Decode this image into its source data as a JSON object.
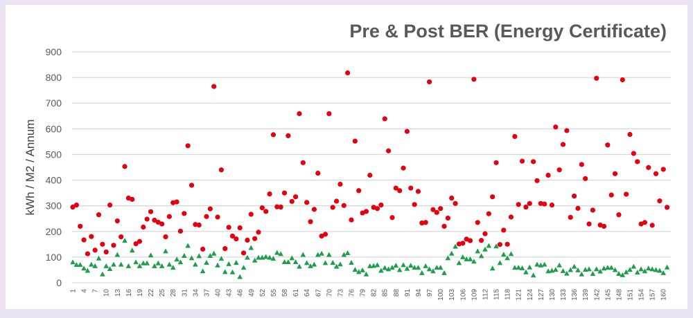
{
  "chart_data": {
    "type": "scatter",
    "title": "Pre & Post BER (Energy Certificate)",
    "xlabel": "",
    "ylabel": "kWh / M2 / Annum",
    "ylim": [
      0,
      900
    ],
    "yticks": [
      0,
      100,
      200,
      300,
      400,
      500,
      600,
      700,
      800,
      900
    ],
    "xlim": [
      1,
      161
    ],
    "xtick_step": 3,
    "grid": "horizontal",
    "legend": "none",
    "series": [
      {
        "marker": "circle",
        "color": "#e3000f",
        "values": [
          295,
          303,
          220,
          167,
          113,
          180,
          127,
          265,
          150,
          120,
          303,
          146,
          241,
          179,
          453,
          330,
          325,
          152,
          161,
          217,
          248,
          277,
          244,
          236,
          229,
          179,
          258,
          312,
          315,
          201,
          270,
          534,
          380,
          227,
          225,
          131,
          258,
          288,
          765,
          256,
          440,
          133,
          216,
          182,
          171,
          214,
          116,
          166,
          267,
          172,
          197,
          292,
          278,
          346,
          577,
          296,
          295,
          350,
          573,
          317,
          335,
          659,
          468,
          313,
          238,
          286,
          427,
          182,
          189,
          659,
          294,
          318,
          384,
          301,
          818,
          245,
          552,
          359,
          272,
          278,
          419,
          294,
          289,
          303,
          639,
          514,
          254,
          369,
          359,
          447,
          590,
          369,
          305,
          356,
          233,
          235,
          783,
          285,
          274,
          289,
          220,
          252,
          330,
          309,
          151,
          154,
          170,
          164,
          793,
          235,
          165,
          191,
          269,
          335,
          468,
          149,
          205,
          150,
          256,
          570,
          305,
          474,
          295,
          309,
          472,
          398,
          309,
          307,
          419,
          303,
          607,
          440,
          539,
          593,
          255,
          338,
          290,
          461,
          406,
          229,
          283,
          797,
          225,
          220,
          537,
          342,
          425,
          265,
          791,
          345,
          578,
          504,
          472,
          229,
          235,
          449,
          224,
          425,
          319,
          442,
          294
        ]
      },
      {
        "marker": "triangle",
        "color": "#1e9e4a",
        "values": [
          80,
          70,
          70,
          56,
          47,
          71,
          65,
          95,
          33,
          65,
          54,
          71,
          109,
          71,
          164,
          65,
          126,
          80,
          65,
          76,
          76,
          107,
          65,
          76,
          65,
          123,
          71,
          59,
          91,
          80,
          105,
          144,
          96,
          71,
          104,
          45,
          78,
          105,
          114,
          68,
          94,
          42,
          73,
          41,
          78,
          23,
          59,
          98,
          136,
          87,
          98,
          98,
          101,
          98,
          94,
          117,
          112,
          81,
          81,
          96,
          81,
          63,
          109,
          77,
          65,
          71,
          109,
          114,
          77,
          109,
          78,
          63,
          72,
          109,
          116,
          78,
          51,
          42,
          49,
          33,
          65,
          66,
          69,
          47,
          58,
          53,
          59,
          67,
          50,
          69,
          55,
          67,
          59,
          59,
          38,
          65,
          53,
          45,
          59,
          59,
          38,
          96,
          114,
          141,
          77,
          100,
          92,
          92,
          83,
          123,
          104,
          130,
          144,
          56,
          142,
          77,
          110,
          96,
          112,
          59,
          59,
          57,
          41,
          60,
          29,
          71,
          68,
          71,
          45,
          47,
          51,
          68,
          46,
          36,
          50,
          63,
          49,
          33,
          51,
          53,
          35,
          53,
          44,
          56,
          59,
          59,
          50,
          35,
          30,
          41,
          51,
          63,
          40,
          53,
          45,
          56,
          53,
          50,
          47,
          38,
          60
        ]
      }
    ]
  },
  "colors": {
    "background": "#ebe3f1",
    "panel": "#ffffff",
    "grid": "#d9d9d9",
    "text": "#595959"
  }
}
